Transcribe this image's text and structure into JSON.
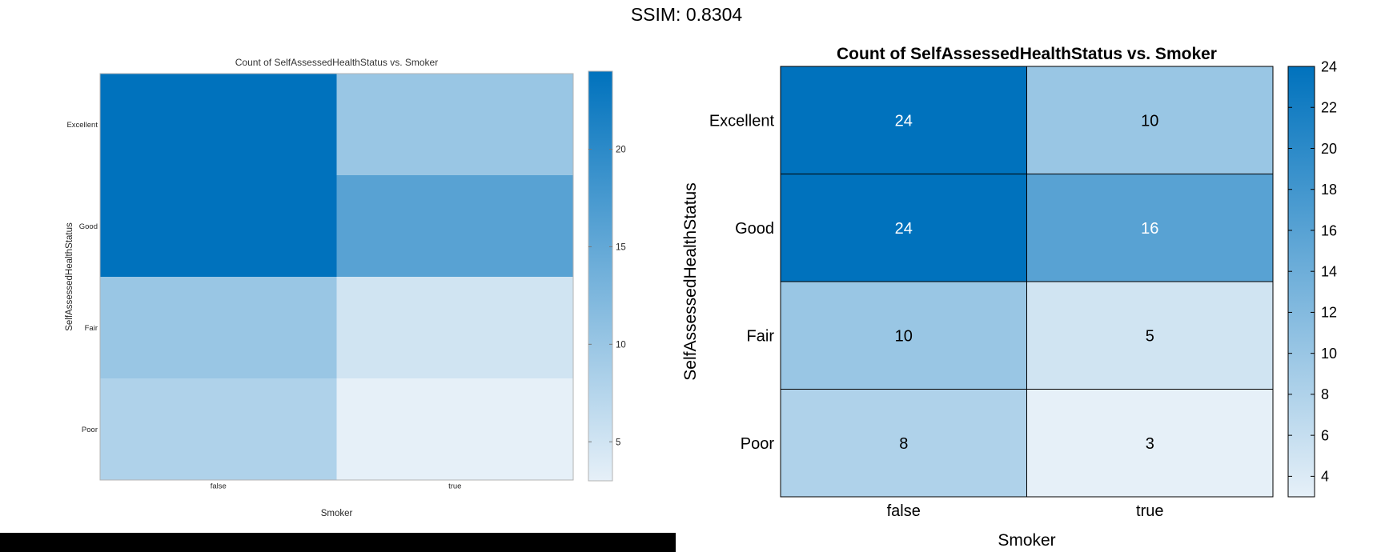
{
  "header": {
    "title": "SSIM: 0.8304"
  },
  "colors": {
    "low": "#e6f0f8",
    "high": "#0072bd",
    "frame": "#999999",
    "axis": "#000000"
  },
  "chart_data": [
    {
      "type": "heatmap",
      "title": "Count of SelfAssessedHealthStatus vs. Smoker",
      "xlabel": "Smoker",
      "ylabel": "SelfAssessedHealthStatus",
      "x_categories": [
        "false",
        "true"
      ],
      "y_categories": [
        "Excellent",
        "Good",
        "Fair",
        "Poor"
      ],
      "values": [
        [
          24,
          10
        ],
        [
          24,
          16
        ],
        [
          10,
          5
        ],
        [
          8,
          3
        ]
      ],
      "color_range": [
        3,
        24
      ],
      "colorbar_ticks": [
        5,
        10,
        15,
        20
      ],
      "show_cell_labels": false,
      "grid": false
    },
    {
      "type": "heatmap",
      "title": "Count of SelfAssessedHealthStatus vs. Smoker",
      "xlabel": "Smoker",
      "ylabel": "SelfAssessedHealthStatus",
      "x_categories": [
        "false",
        "true"
      ],
      "y_categories": [
        "Excellent",
        "Good",
        "Fair",
        "Poor"
      ],
      "values": [
        [
          24,
          10
        ],
        [
          24,
          16
        ],
        [
          10,
          5
        ],
        [
          8,
          3
        ]
      ],
      "color_range": [
        3,
        24
      ],
      "colorbar_ticks": [
        4,
        6,
        8,
        10,
        12,
        14,
        16,
        18,
        20,
        22,
        24
      ],
      "show_cell_labels": true,
      "grid": false
    }
  ]
}
